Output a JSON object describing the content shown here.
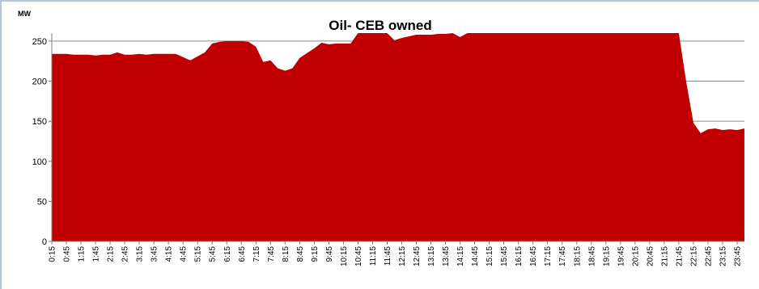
{
  "chart_data": {
    "type": "area",
    "title": "Oil- CEB owned",
    "ylabel": "MW",
    "xlabel": "",
    "ylim": [
      0,
      260
    ],
    "yticks": [
      0,
      50,
      100,
      150,
      200,
      250
    ],
    "grid": "horizontal",
    "legend": "none",
    "color": "#c00000",
    "x": [
      "0:15",
      "0:30",
      "0:45",
      "1:00",
      "1:15",
      "1:30",
      "1:45",
      "2:00",
      "2:15",
      "2:30",
      "2:45",
      "3:00",
      "3:15",
      "3:30",
      "3:45",
      "4:00",
      "4:15",
      "4:30",
      "4:45",
      "5:00",
      "5:15",
      "5:30",
      "5:45",
      "6:00",
      "6:15",
      "6:30",
      "6:45",
      "7:00",
      "7:15",
      "7:30",
      "7:45",
      "8:00",
      "8:15",
      "8:30",
      "8:45",
      "9:00",
      "9:15",
      "9:30",
      "9:45",
      "10:00",
      "10:15",
      "10:30",
      "10:45",
      "11:00",
      "11:15",
      "11:30",
      "11:45",
      "12:00",
      "12:15",
      "12:30",
      "12:45",
      "13:00",
      "13:15",
      "13:30",
      "13:45",
      "14:00",
      "14:15",
      "14:30",
      "14:45",
      "15:00",
      "15:15",
      "15:30",
      "15:45",
      "16:00",
      "16:15",
      "16:30",
      "16:45",
      "17:00",
      "17:15",
      "17:30",
      "17:45",
      "18:00",
      "18:15",
      "18:30",
      "18:45",
      "19:00",
      "19:15",
      "19:30",
      "19:45",
      "20:00",
      "20:15",
      "20:30",
      "20:45",
      "21:00",
      "21:15",
      "21:30",
      "21:45",
      "22:00",
      "22:15",
      "22:30",
      "22:45",
      "23:00",
      "23:15",
      "23:30",
      "23:45",
      "24:00"
    ],
    "series": [
      {
        "values": [
          234,
          234,
          234,
          233,
          233,
          233,
          232,
          233,
          233,
          236,
          233,
          233,
          234,
          233,
          234,
          234,
          234,
          234,
          230,
          226,
          231,
          236,
          247,
          249,
          250,
          250,
          250,
          249,
          243,
          224,
          226,
          216,
          213,
          216,
          229,
          235,
          241,
          248,
          246,
          247,
          247,
          247,
          260,
          260,
          260,
          260,
          260,
          251,
          254,
          256,
          258,
          258,
          258,
          259,
          259,
          260,
          255,
          260,
          260,
          260,
          260,
          260,
          260,
          260,
          260,
          260,
          260,
          260,
          260,
          260,
          260,
          260,
          260,
          260,
          260,
          260,
          260,
          260,
          260,
          260,
          260,
          260,
          260,
          260,
          260,
          260,
          260,
          200,
          148,
          135,
          140,
          141,
          139,
          140,
          139,
          141
        ]
      }
    ],
    "xticks": [
      "0:15",
      "0:45",
      "1:15",
      "1:45",
      "2:15",
      "2:45",
      "3:15",
      "3:45",
      "4:15",
      "4:45",
      "5:15",
      "5:45",
      "6:15",
      "6:45",
      "7:15",
      "7:45",
      "8:15",
      "8:45",
      "9:15",
      "9:45",
      "10:15",
      "10:45",
      "11:15",
      "11:45",
      "12:15",
      "12:45",
      "13:15",
      "13:45",
      "14:15",
      "14:45",
      "15:15",
      "15:45",
      "16:15",
      "16:45",
      "17:15",
      "17:45",
      "18:15",
      "18:45",
      "19:15",
      "19:45",
      "20:15",
      "20:45",
      "21:15",
      "21:45",
      "22:15",
      "22:45",
      "23:15",
      "23:45"
    ]
  }
}
